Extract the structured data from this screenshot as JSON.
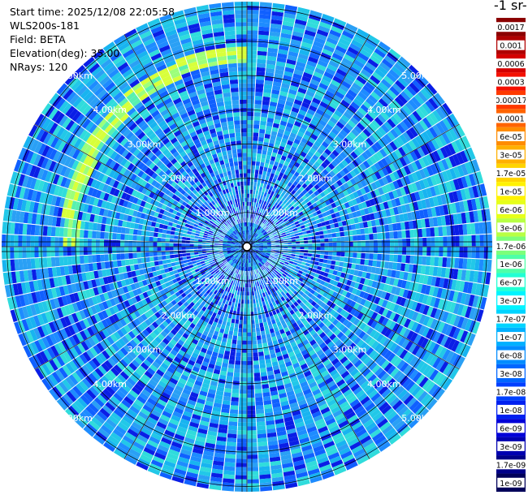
{
  "header": {
    "start_time": "Start time: 2025/12/08 22:05:58",
    "instrument": "WLS200s-181",
    "field": "Field: BETA",
    "elevation": "Elevation(deg): 35.00",
    "nrays": "NRays: 120"
  },
  "units_label": "-1 sr-",
  "range_rings": {
    "labels": [
      "1.00km",
      "2.00km",
      "3.00km",
      "4.00km",
      "5.00km"
    ]
  },
  "colorbar": {
    "ticks": [
      "0.0017",
      "0.001",
      "0.0006",
      "0.0003",
      "0.00017",
      "0.0001",
      "6e-05",
      "3e-05",
      "1.7e-05",
      "1e-05",
      "6e-06",
      "3e-06",
      "1.7e-06",
      "1e-06",
      "6e-07",
      "3e-07",
      "1.7e-07",
      "1e-07",
      "6e-08",
      "3e-08",
      "1.7e-08",
      "1e-08",
      "6e-09",
      "3e-09",
      "1.7e-09",
      "1e-09"
    ],
    "colors": [
      "#8b0000",
      "#b00000",
      "#d40000",
      "#f41000",
      "#ff3a00",
      "#ff6400",
      "#ff8c00",
      "#ffb000",
      "#ffd400",
      "#fff200",
      "#e6ff1a",
      "#b8ff44",
      "#7cff7a",
      "#4effa8",
      "#22ffd4",
      "#00f4ff",
      "#00d4ff",
      "#00b0ff",
      "#008cff",
      "#0066ff",
      "#0040ff",
      "#0020f0",
      "#0000d8",
      "#0000b0",
      "#000088",
      "#00005a"
    ]
  }
}
